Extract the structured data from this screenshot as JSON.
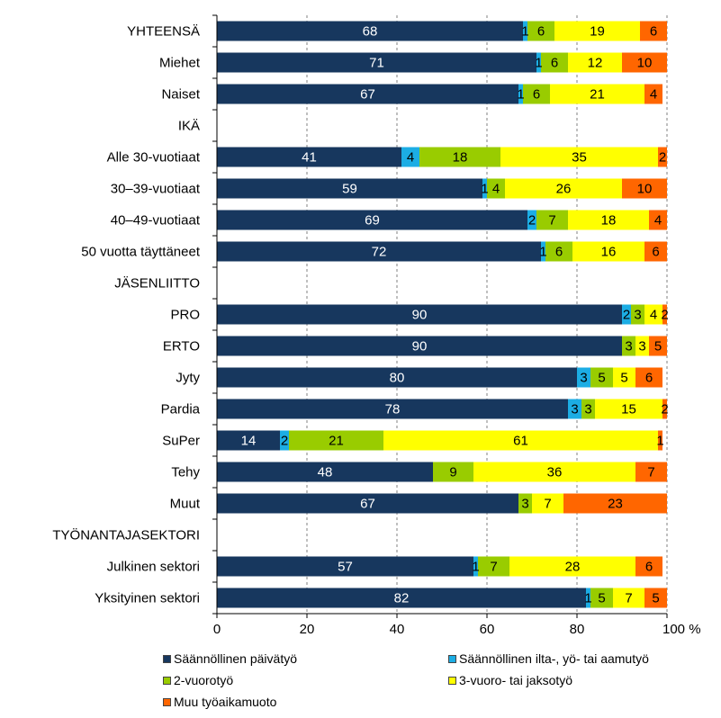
{
  "chart_data": {
    "type": "bar",
    "orientation": "horizontal",
    "stacked": true,
    "categories": [
      "YHTEENSÄ",
      "Miehet",
      "Naiset",
      "IKÄ",
      "Alle 30-vuotiaat",
      "30–39-vuotiaat",
      "40–49-vuotiaat",
      "50 vuotta täyttäneet",
      "JÄSENLIITTO",
      "PRO",
      "ERTO",
      "Jyty",
      "Pardia",
      "SuPer",
      "Tehy",
      "Muut",
      "TYÖNANTAJASEKTORI",
      "Julkinen sektori",
      "Yksityinen sektori"
    ],
    "series": [
      {
        "name": "Säännöllinen päivätyö",
        "color": "#17375E",
        "label_color": "#FFFFFF",
        "values": [
          68,
          71,
          67,
          null,
          41,
          59,
          69,
          72,
          null,
          90,
          90,
          80,
          78,
          14,
          48,
          67,
          null,
          57,
          82
        ]
      },
      {
        "name": "Säännöllinen ilta-, yö- tai aamutyö",
        "color": "#1CADE4",
        "label_color": "#000000",
        "values": [
          1,
          1,
          1,
          null,
          4,
          1,
          2,
          1,
          null,
          2,
          0,
          3,
          3,
          2,
          0,
          0,
          null,
          1,
          1
        ]
      },
      {
        "name": "2-vuorotyö",
        "color": "#99CC00",
        "label_color": "#000000",
        "values": [
          6,
          6,
          6,
          null,
          18,
          4,
          7,
          6,
          null,
          3,
          3,
          5,
          3,
          21,
          9,
          3,
          null,
          7,
          5
        ]
      },
      {
        "name": "3-vuoro- tai jaksotyö",
        "color": "#FFFF00",
        "label_color": "#000000",
        "values": [
          19,
          12,
          21,
          null,
          35,
          26,
          18,
          16,
          null,
          4,
          3,
          5,
          15,
          61,
          36,
          7,
          null,
          28,
          7
        ]
      },
      {
        "name": "Muu työaikamuoto",
        "color": "#FF6600",
        "label_color": "#000000",
        "values": [
          6,
          10,
          4,
          null,
          2,
          10,
          4,
          6,
          null,
          2,
          5,
          6,
          2,
          1,
          7,
          23,
          null,
          6,
          5
        ]
      }
    ],
    "xlim": [
      0,
      100
    ],
    "xticks": [
      0,
      20,
      40,
      60,
      80,
      100
    ],
    "xtick_labels": [
      "0",
      "20",
      "40",
      "60",
      "80",
      "100 %"
    ],
    "legend": "bottom",
    "grid": "vertical dashed"
  },
  "legend_items": [
    "Säännöllinen päivätyö",
    "Säännöllinen ilta-, yö- tai aamutyö",
    "2-vuorotyö",
    "3-vuoro- tai jaksotyö",
    "Muu työaikamuoto"
  ]
}
